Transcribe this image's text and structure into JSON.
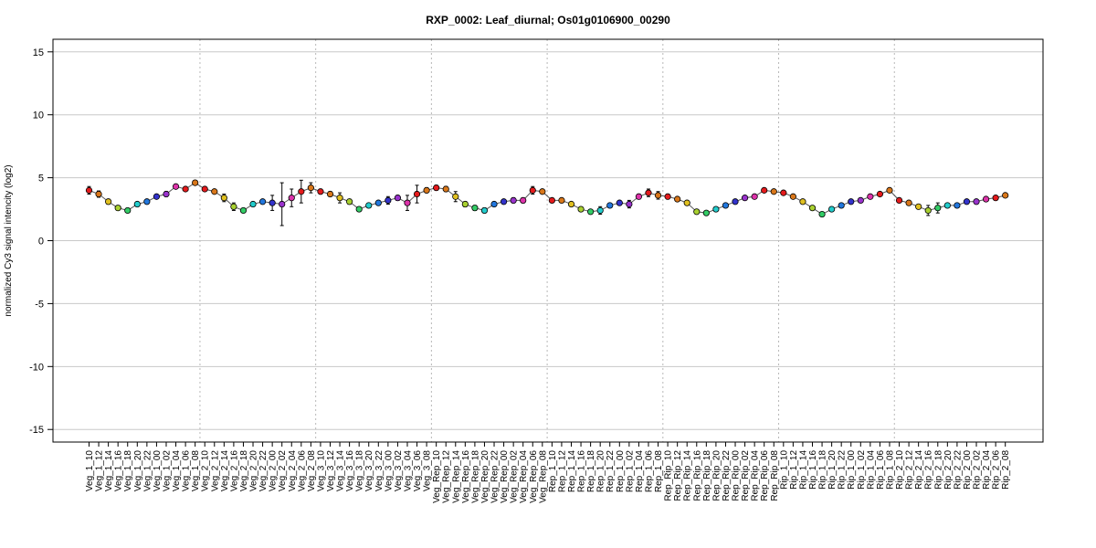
{
  "chart_data": {
    "type": "line",
    "title": "RXP_0002: Leaf_diurnal; Os01g0106900_00290",
    "xlabel": "",
    "ylabel": "normalized Cy3 signal intencity (log2)",
    "ylim": [
      -16,
      16
    ],
    "yticks": [
      -15,
      -10,
      -5,
      0,
      5,
      10,
      15
    ],
    "grid": true,
    "legend": "none",
    "colors": [
      "#e41a1c",
      "#d9771a",
      "#e0c020",
      "#a8d030",
      "#33cc66",
      "#22cccc",
      "#2277dd",
      "#3333cc",
      "#9933cc",
      "#dd33aa"
    ],
    "line_color": "#555555",
    "categories": [
      "Veg_1_10",
      "Veg_1_12",
      "Veg_1_14",
      "Veg_1_16",
      "Veg_1_18",
      "Veg_1_20",
      "Veg_1_22",
      "Veg_1_00",
      "Veg_1_02",
      "Veg_1_04",
      "Veg_1_06",
      "Veg_1_08",
      "Veg_2_10",
      "Veg_2_12",
      "Veg_2_14",
      "Veg_2_16",
      "Veg_2_18",
      "Veg_2_20",
      "Veg_2_22",
      "Veg_2_00",
      "Veg_2_02",
      "Veg_2_04",
      "Veg_2_06",
      "Veg_2_08",
      "Veg_3_10",
      "Veg_3_12",
      "Veg_3_14",
      "Veg_3_16",
      "Veg_3_18",
      "Veg_3_20",
      "Veg_3_22",
      "Veg_3_00",
      "Veg_3_02",
      "Veg_3_04",
      "Veg_3_06",
      "Veg_3_08",
      "Veg_Rep_10",
      "Veg_Rep_12",
      "Veg_Rep_14",
      "Veg_Rep_16",
      "Veg_Rep_18",
      "Veg_Rep_20",
      "Veg_Rep_22",
      "Veg_Rep_00",
      "Veg_Rep_02",
      "Veg_Rep_04",
      "Veg_Rep_06",
      "Veg_Rep_08",
      "Rep_1_10",
      "Rep_1_12",
      "Rep_1_14",
      "Rep_1_16",
      "Rep_1_18",
      "Rep_1_20",
      "Rep_1_22",
      "Rep_1_00",
      "Rep_1_02",
      "Rep_1_04",
      "Rep_1_06",
      "Rep_1_08",
      "Rep_Rip_10",
      "Rep_Rip_12",
      "Rep_Rip_14",
      "Rep_Rip_16",
      "Rep_Rip_18",
      "Rep_Rip_20",
      "Rep_Rip_22",
      "Rep_Rip_00",
      "Rep_Rip_02",
      "Rep_Rip_04",
      "Rep_Rip_06",
      "Rep_Rip_08",
      "Rip_1_10",
      "Rip_1_12",
      "Rip_1_14",
      "Rip_1_16",
      "Rip_1_18",
      "Rip_1_20",
      "Rip_1_22",
      "Rip_1_00",
      "Rip_1_02",
      "Rip_1_04",
      "Rip_1_06",
      "Rip_1_08",
      "Rip_2_10",
      "Rip_2_12",
      "Rip_2_14",
      "Rip_2_16",
      "Rip_2_18",
      "Rip_2_20",
      "Rip_2_22",
      "Rip_2_00",
      "Rip_2_02",
      "Rip_2_04",
      "Rip_2_06",
      "Rip_2_08"
    ],
    "values": [
      4.0,
      3.7,
      3.1,
      2.6,
      2.4,
      2.9,
      3.1,
      3.5,
      3.7,
      4.3,
      4.1,
      4.6,
      4.1,
      3.9,
      3.4,
      2.7,
      2.4,
      2.9,
      3.1,
      3.0,
      2.9,
      3.4,
      3.9,
      4.2,
      3.9,
      3.7,
      3.4,
      3.1,
      2.5,
      2.8,
      3.0,
      3.2,
      3.4,
      3.0,
      3.7,
      4.0,
      4.2,
      4.1,
      3.5,
      2.9,
      2.6,
      2.4,
      2.9,
      3.1,
      3.2,
      3.2,
      4.0,
      3.9,
      3.2,
      3.2,
      2.9,
      2.5,
      2.3,
      2.4,
      2.8,
      3.0,
      2.9,
      3.5,
      3.8,
      3.6,
      3.5,
      3.3,
      3.0,
      2.3,
      2.2,
      2.5,
      2.8,
      3.1,
      3.4,
      3.5,
      4.0,
      3.9,
      3.8,
      3.5,
      3.1,
      2.6,
      2.1,
      2.5,
      2.8,
      3.1,
      3.2,
      3.5,
      3.7,
      4.0,
      3.2,
      3.0,
      2.7,
      2.4,
      2.6,
      2.8,
      2.8,
      3.1,
      3.1,
      3.3,
      3.4,
      3.6
    ],
    "errors": [
      0.3,
      0.25,
      0.2,
      0.15,
      0.15,
      0.15,
      0.15,
      0.15,
      0.2,
      0.15,
      0.15,
      0.15,
      0.15,
      0.15,
      0.3,
      0.3,
      0.15,
      0.15,
      0.15,
      0.6,
      1.7,
      0.7,
      0.9,
      0.4,
      0.2,
      0.2,
      0.4,
      0.2,
      0.15,
      0.15,
      0.15,
      0.3,
      0.2,
      0.6,
      0.7,
      0.2,
      0.2,
      0.2,
      0.4,
      0.2,
      0.2,
      0.2,
      0.15,
      0.15,
      0.2,
      0.2,
      0.3,
      0.15,
      0.15,
      0.15,
      0.15,
      0.15,
      0.15,
      0.3,
      0.15,
      0.15,
      0.3,
      0.2,
      0.3,
      0.3,
      0.2,
      0.15,
      0.15,
      0.15,
      0.15,
      0.15,
      0.15,
      0.15,
      0.15,
      0.15,
      0.15,
      0.15,
      0.15,
      0.15,
      0.15,
      0.15,
      0.15,
      0.15,
      0.15,
      0.15,
      0.15,
      0.15,
      0.15,
      0.15,
      0.15,
      0.15,
      0.15,
      0.4,
      0.4,
      0.15,
      0.15,
      0.15,
      0.15,
      0.15,
      0.15,
      0.15
    ],
    "group_separators_after_index": [
      11,
      23,
      35,
      47,
      59,
      71,
      83
    ]
  }
}
